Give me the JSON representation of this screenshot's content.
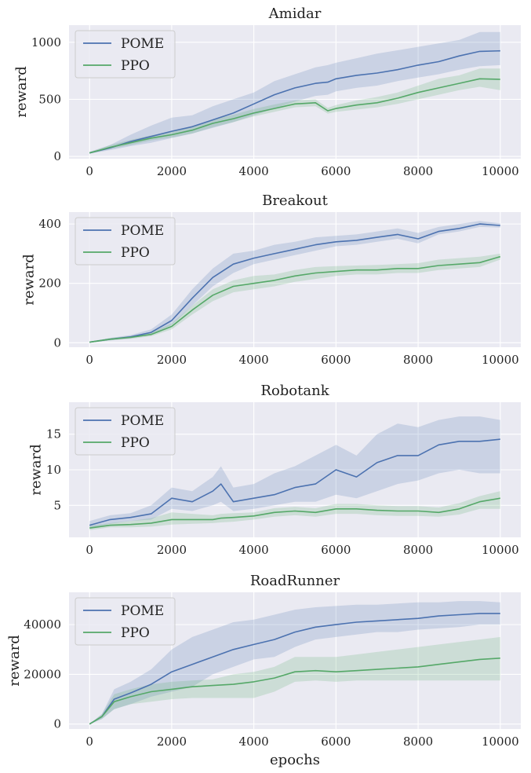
{
  "colors": {
    "POME": "#4c72b0",
    "PPO": "#55a868",
    "panel": "#eaeaf2",
    "grid": "#ffffff"
  },
  "chart_data": [
    {
      "type": "line",
      "title": "Amidar",
      "xlabel": "",
      "ylabel": "reward",
      "xlim": [
        -500,
        10500
      ],
      "ylim": [
        -20,
        1150
      ],
      "xticks": [
        0,
        2000,
        4000,
        6000,
        8000,
        10000
      ],
      "xtick_labels": [
        "0",
        "2000",
        "4000",
        "6000",
        "8000",
        "10000"
      ],
      "yticks": [
        0,
        500,
        1000
      ],
      "ytick_labels": [
        "0",
        "500",
        "1000"
      ],
      "grid": true,
      "legend": "top-left",
      "x": [
        0,
        500,
        1000,
        1500,
        2000,
        2500,
        3000,
        3500,
        4000,
        4500,
        5000,
        5500,
        5800,
        6000,
        6500,
        7000,
        7500,
        8000,
        8500,
        9000,
        9500,
        10000
      ],
      "series": [
        {
          "name": "POME",
          "values": [
            30,
            75,
            130,
            175,
            220,
            260,
            320,
            380,
            460,
            540,
            600,
            640,
            650,
            680,
            710,
            730,
            760,
            800,
            830,
            880,
            920,
            925
          ],
          "lower": [
            25,
            55,
            90,
            120,
            160,
            200,
            250,
            300,
            360,
            420,
            480,
            530,
            540,
            570,
            600,
            620,
            660,
            690,
            720,
            760,
            790,
            800
          ],
          "upper": [
            40,
            100,
            190,
            270,
            340,
            360,
            440,
            500,
            560,
            660,
            720,
            780,
            800,
            820,
            860,
            900,
            930,
            960,
            990,
            1020,
            1090,
            1090
          ]
        },
        {
          "name": "PPO",
          "values": [
            30,
            80,
            120,
            160,
            190,
            230,
            290,
            330,
            380,
            420,
            460,
            470,
            400,
            420,
            450,
            470,
            510,
            560,
            600,
            640,
            680,
            675
          ],
          "lower": [
            25,
            65,
            100,
            140,
            165,
            200,
            255,
            300,
            350,
            390,
            430,
            440,
            375,
            390,
            410,
            430,
            460,
            500,
            540,
            580,
            610,
            580
          ],
          "upper": [
            38,
            100,
            145,
            185,
            215,
            260,
            325,
            365,
            415,
            455,
            490,
            500,
            425,
            450,
            490,
            520,
            560,
            620,
            680,
            710,
            770,
            770
          ]
        }
      ]
    },
    {
      "type": "line",
      "title": "Breakout",
      "xlabel": "",
      "ylabel": "reward",
      "xlim": [
        -500,
        10500
      ],
      "ylim": [
        -15,
        440
      ],
      "xticks": [
        0,
        2000,
        4000,
        6000,
        8000,
        10000
      ],
      "xtick_labels": [
        "0",
        "2000",
        "4000",
        "6000",
        "8000",
        "10000"
      ],
      "yticks": [
        0,
        200,
        400
      ],
      "ytick_labels": [
        "0",
        "200",
        "400"
      ],
      "grid": true,
      "legend": "top-left",
      "x": [
        0,
        500,
        1000,
        1500,
        2000,
        2500,
        3000,
        3500,
        4000,
        4500,
        5000,
        5500,
        6000,
        6500,
        7000,
        7500,
        8000,
        8500,
        9000,
        9500,
        10000
      ],
      "series": [
        {
          "name": "POME",
          "values": [
            2,
            12,
            20,
            35,
            75,
            150,
            220,
            265,
            285,
            300,
            315,
            330,
            340,
            345,
            355,
            365,
            350,
            375,
            385,
            400,
            395
          ],
          "lower": [
            0,
            8,
            15,
            28,
            60,
            125,
            190,
            235,
            265,
            280,
            295,
            310,
            325,
            330,
            340,
            350,
            335,
            365,
            375,
            390,
            388
          ],
          "upper": [
            4,
            16,
            26,
            45,
            95,
            180,
            250,
            300,
            310,
            330,
            340,
            355,
            360,
            365,
            375,
            385,
            370,
            390,
            400,
            410,
            402
          ]
        },
        {
          "name": "PPO",
          "values": [
            2,
            12,
            18,
            28,
            55,
            110,
            160,
            190,
            200,
            210,
            225,
            235,
            240,
            245,
            245,
            250,
            250,
            260,
            265,
            270,
            290
          ],
          "lower": [
            0,
            8,
            13,
            22,
            45,
            95,
            140,
            170,
            180,
            190,
            205,
            215,
            225,
            230,
            230,
            235,
            235,
            245,
            250,
            255,
            280
          ],
          "upper": [
            4,
            16,
            23,
            35,
            65,
            125,
            180,
            210,
            225,
            230,
            245,
            255,
            258,
            260,
            262,
            265,
            268,
            280,
            285,
            290,
            300
          ]
        }
      ]
    },
    {
      "type": "line",
      "title": "Robotank",
      "xlabel": "",
      "ylabel": "reward",
      "xlim": [
        -500,
        10500
      ],
      "ylim": [
        0.5,
        19.5
      ],
      "xticks": [
        0,
        2000,
        4000,
        6000,
        8000,
        10000
      ],
      "xtick_labels": [
        "0",
        "2000",
        "4000",
        "6000",
        "8000",
        "10000"
      ],
      "yticks": [
        5,
        10,
        15
      ],
      "ytick_labels": [
        "5",
        "10",
        "15"
      ],
      "grid": true,
      "legend": "top-left",
      "x": [
        0,
        500,
        1000,
        1500,
        2000,
        2500,
        3000,
        3200,
        3500,
        4000,
        4500,
        5000,
        5500,
        6000,
        6500,
        7000,
        7500,
        8000,
        8500,
        9000,
        9500,
        10000
      ],
      "series": [
        {
          "name": "POME",
          "values": [
            2.2,
            3.0,
            3.3,
            3.8,
            6.0,
            5.5,
            7.0,
            8.0,
            5.5,
            6.0,
            6.5,
            7.5,
            8.0,
            10.0,
            9.0,
            11.0,
            12.0,
            12.0,
            13.5,
            14.0,
            14.0,
            14.3
          ],
          "lower": [
            1.8,
            2.4,
            2.8,
            3.0,
            4.5,
            4.2,
            5.0,
            5.5,
            4.2,
            4.5,
            5.0,
            5.5,
            5.5,
            6.5,
            6.0,
            7.0,
            8.0,
            8.5,
            9.5,
            10.0,
            9.5,
            9.5
          ],
          "upper": [
            2.8,
            3.6,
            3.9,
            5.0,
            7.5,
            7.0,
            9.0,
            10.5,
            7.5,
            8.0,
            9.5,
            10.5,
            12.0,
            13.5,
            12.0,
            15.0,
            16.5,
            16.0,
            17.0,
            17.5,
            17.5,
            17.0
          ]
        },
        {
          "name": "PPO",
          "values": [
            1.8,
            2.2,
            2.3,
            2.5,
            3.0,
            3.0,
            3.0,
            3.2,
            3.3,
            3.5,
            4.0,
            4.2,
            4.0,
            4.5,
            4.5,
            4.3,
            4.2,
            4.2,
            4.0,
            4.5,
            5.5,
            6.0
          ],
          "lower": [
            1.5,
            1.9,
            1.9,
            2.0,
            2.3,
            2.4,
            2.5,
            2.6,
            2.7,
            3.0,
            3.4,
            3.6,
            3.4,
            3.8,
            3.8,
            3.6,
            3.5,
            3.5,
            3.4,
            3.7,
            4.5,
            4.5
          ],
          "upper": [
            2.1,
            2.5,
            2.8,
            3.2,
            4.0,
            3.8,
            3.6,
            3.8,
            3.9,
            4.0,
            4.6,
            4.8,
            4.6,
            5.2,
            5.2,
            5.0,
            4.9,
            4.9,
            4.7,
            5.3,
            6.3,
            7.0
          ]
        }
      ]
    },
    {
      "type": "line",
      "title": "RoadRunner",
      "xlabel": "epochs",
      "ylabel": "reward",
      "xlim": [
        -500,
        10500
      ],
      "ylim": [
        -2000,
        53000
      ],
      "xticks": [
        0,
        2000,
        4000,
        6000,
        8000,
        10000
      ],
      "xtick_labels": [
        "0",
        "2000",
        "4000",
        "6000",
        "8000",
        "10000"
      ],
      "yticks": [
        0,
        20000,
        40000
      ],
      "ytick_labels": [
        "0",
        "20000",
        "40000"
      ],
      "grid": true,
      "legend": "top-left",
      "x": [
        0,
        300,
        600,
        1000,
        1500,
        2000,
        2500,
        3000,
        3500,
        4000,
        4500,
        5000,
        5500,
        6000,
        6500,
        7000,
        7500,
        8000,
        8500,
        9000,
        9500,
        10000
      ],
      "series": [
        {
          "name": "POME",
          "values": [
            0,
            3000,
            10000,
            12500,
            16000,
            21000,
            24000,
            27000,
            30000,
            32000,
            34000,
            37000,
            39000,
            40000,
            41000,
            41500,
            42000,
            42500,
            43500,
            44000,
            44500,
            44500
          ],
          "lower": [
            0,
            2000,
            6000,
            8000,
            11000,
            13000,
            15000,
            20000,
            23000,
            26000,
            27000,
            31000,
            34000,
            35000,
            36000,
            37000,
            37000,
            38000,
            38500,
            39000,
            40000,
            40000
          ],
          "upper": [
            0,
            4000,
            14000,
            17000,
            22000,
            30000,
            35000,
            38000,
            41000,
            42000,
            44000,
            46000,
            47000,
            47500,
            48000,
            48000,
            48500,
            49000,
            49000,
            49500,
            49500,
            49000
          ]
        },
        {
          "name": "PPO",
          "values": [
            0,
            3000,
            9000,
            11000,
            13000,
            14000,
            15000,
            15500,
            16000,
            17000,
            18500,
            21000,
            21500,
            21000,
            21500,
            22000,
            22500,
            23000,
            24000,
            25000,
            26000,
            26500
          ],
          "lower": [
            0,
            2000,
            6000,
            8000,
            9000,
            10000,
            10500,
            10500,
            10500,
            10500,
            13000,
            17000,
            17500,
            17000,
            17500,
            17500,
            17500,
            17500,
            17500,
            17500,
            17500,
            17500
          ],
          "upper": [
            0,
            4000,
            12000,
            14000,
            16000,
            17000,
            17500,
            18000,
            20000,
            21000,
            23000,
            27000,
            27000,
            27000,
            28000,
            29000,
            30000,
            31000,
            32000,
            33000,
            34000,
            35000
          ]
        }
      ]
    }
  ]
}
